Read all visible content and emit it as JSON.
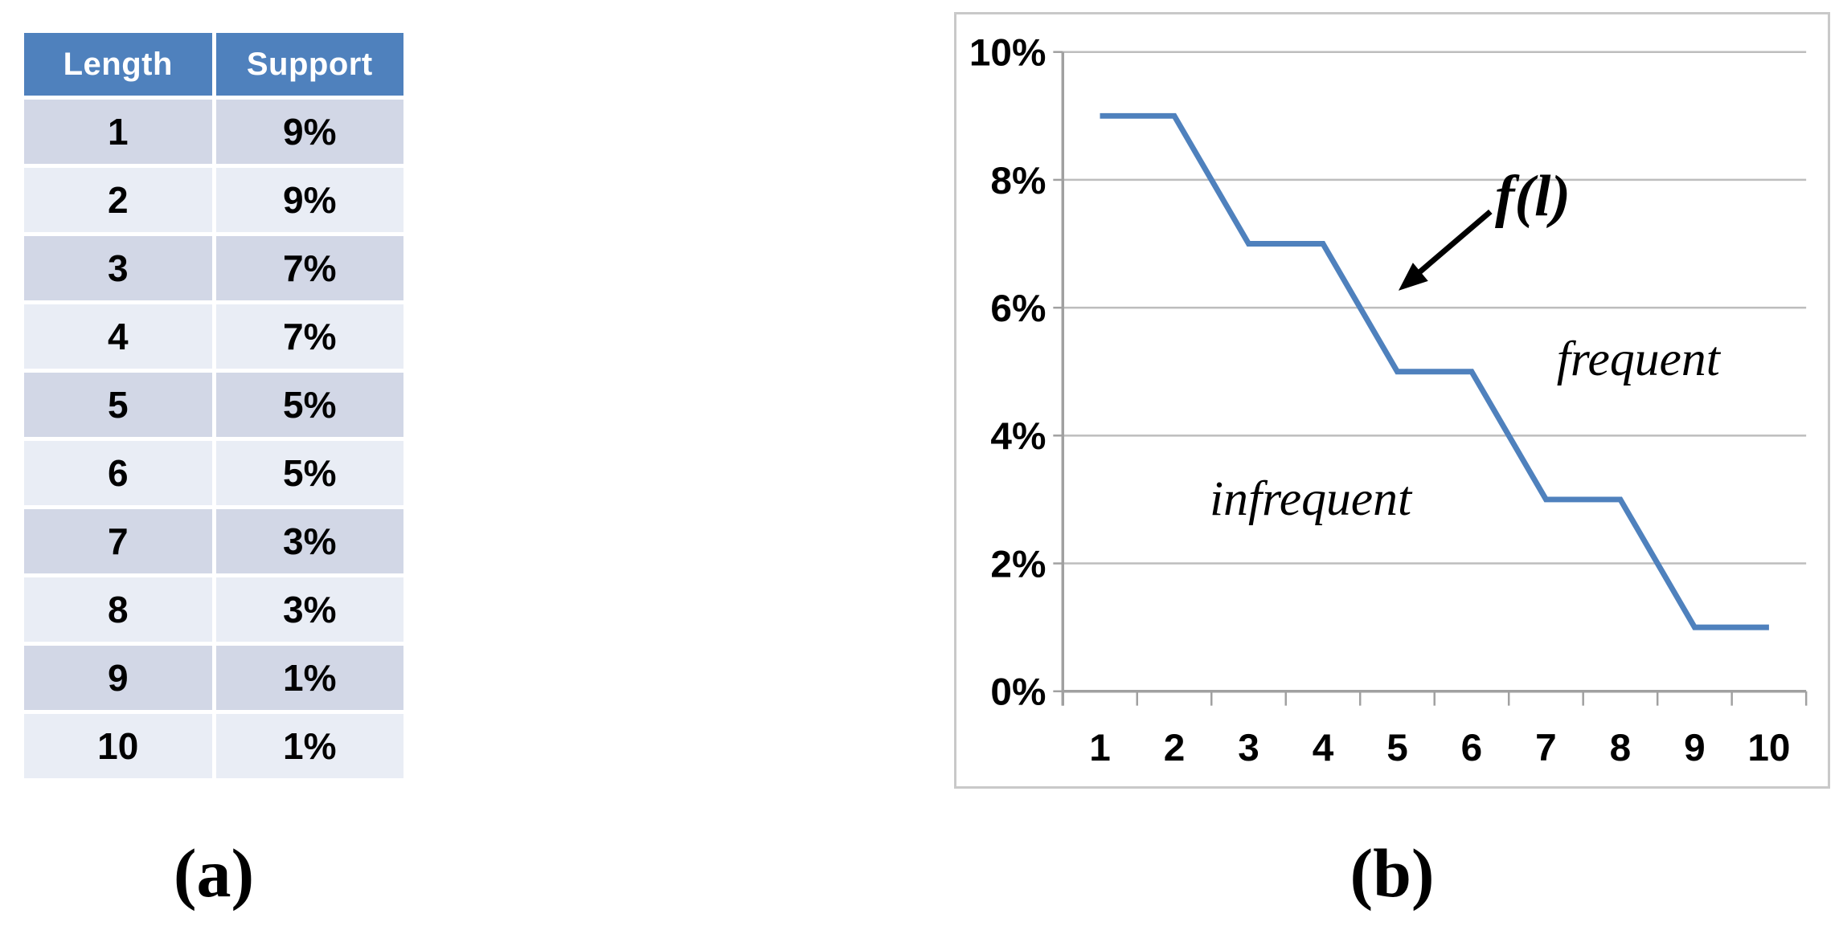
{
  "panel_a": {
    "table": {
      "columns": [
        "Length",
        "Support"
      ],
      "rows": [
        [
          "1",
          "9%"
        ],
        [
          "2",
          "9%"
        ],
        [
          "3",
          "7%"
        ],
        [
          "4",
          "7%"
        ],
        [
          "5",
          "5%"
        ],
        [
          "6",
          "5%"
        ],
        [
          "7",
          "3%"
        ],
        [
          "8",
          "3%"
        ],
        [
          "9",
          "1%"
        ],
        [
          "10",
          "1%"
        ]
      ]
    },
    "caption": "(a)"
  },
  "panel_b": {
    "caption": "(b)"
  },
  "chart_data": {
    "type": "line",
    "x": [
      "1",
      "2",
      "3",
      "4",
      "5",
      "6",
      "7",
      "8",
      "9",
      "10"
    ],
    "values": [
      9,
      9,
      7,
      7,
      5,
      5,
      3,
      3,
      1,
      1
    ],
    "series_name": "f(l)",
    "title": "",
    "xlabel": "",
    "ylabel": "",
    "ylim": [
      0,
      10
    ],
    "y_ticks": [
      "10%",
      "8%",
      "6%",
      "4%",
      "2%",
      "0%"
    ],
    "grid": true,
    "legend_position": "none",
    "annotations": {
      "fl": "f(l)",
      "frequent": "frequent",
      "infrequent": "infrequent"
    }
  },
  "colors": {
    "header_bg": "#4f81bd",
    "header_text": "#ffffff",
    "row_dark": "#d2d7e6",
    "row_light": "#e9edf5",
    "line": "#4f81bd",
    "gridline": "#bdbdbd",
    "axis": "#a0a0a0",
    "chart_border": "#c9c9c9",
    "text": "#000000"
  }
}
